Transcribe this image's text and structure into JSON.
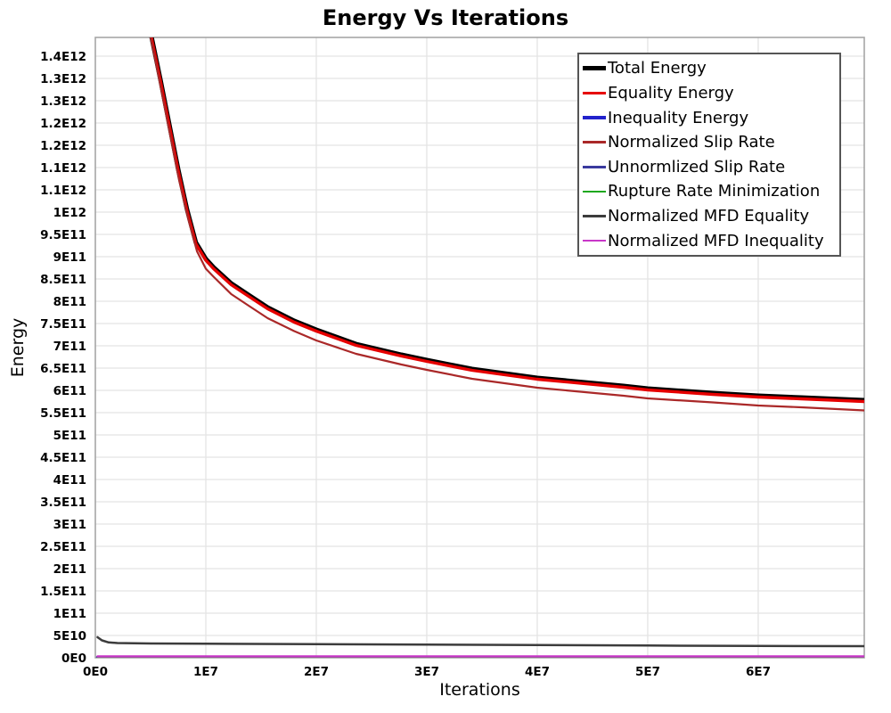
{
  "chart_data": {
    "type": "line",
    "title": "Energy Vs Iterations",
    "xlabel": "Iterations",
    "ylabel": "Energy",
    "xlim": [
      0,
      69600000.0
    ],
    "ylim": [
      0,
      1392000000000.0
    ],
    "grid": true,
    "legend_position": "top-right-inside",
    "x_ticks": [
      {
        "value": 0,
        "label": "0E0"
      },
      {
        "value": 10000000.0,
        "label": "1E7"
      },
      {
        "value": 20000000.0,
        "label": "2E7"
      },
      {
        "value": 30000000.0,
        "label": "3E7"
      },
      {
        "value": 40000000.0,
        "label": "4E7"
      },
      {
        "value": 50000000.0,
        "label": "5E7"
      },
      {
        "value": 60000000.0,
        "label": "6E7"
      }
    ],
    "y_ticks": [
      {
        "value": 0,
        "label": "0E0"
      },
      {
        "value": 50000000000.0,
        "label": "5E10"
      },
      {
        "value": 100000000000.0,
        "label": "1E11"
      },
      {
        "value": 150000000000.0,
        "label": "1.5E11"
      },
      {
        "value": 200000000000.0,
        "label": "2E11"
      },
      {
        "value": 250000000000.0,
        "label": "2.5E11"
      },
      {
        "value": 300000000000.0,
        "label": "3E11"
      },
      {
        "value": 350000000000.0,
        "label": "3.5E11"
      },
      {
        "value": 400000000000.0,
        "label": "4E11"
      },
      {
        "value": 450000000000.0,
        "label": "4.5E11"
      },
      {
        "value": 500000000000.0,
        "label": "5E11"
      },
      {
        "value": 550000000000.0,
        "label": "5.5E11"
      },
      {
        "value": 600000000000.0,
        "label": "6E11"
      },
      {
        "value": 650000000000.0,
        "label": "6.5E11"
      },
      {
        "value": 700000000000.0,
        "label": "7E11"
      },
      {
        "value": 750000000000.0,
        "label": "7.5E11"
      },
      {
        "value": 800000000000.0,
        "label": "8E11"
      },
      {
        "value": 850000000000.0,
        "label": "8.5E11"
      },
      {
        "value": 900000000000.0,
        "label": "9E11"
      },
      {
        "value": 950000000000.0,
        "label": "9.5E11"
      },
      {
        "value": 1000000000000.0,
        "label": "1E12"
      },
      {
        "value": 1050000000000.0,
        "label": "1.1E12"
      },
      {
        "value": 1100000000000.0,
        "label": "1.1E12"
      },
      {
        "value": 1150000000000.0,
        "label": "1.2E12"
      },
      {
        "value": 1200000000000.0,
        "label": "1.2E12"
      },
      {
        "value": 1250000000000.0,
        "label": "1.3E12"
      },
      {
        "value": 1300000000000.0,
        "label": "1.3E12"
      },
      {
        "value": 1350000000000.0,
        "label": "1.4E12"
      }
    ],
    "series": [
      {
        "name": "Total Energy",
        "color": "#000000",
        "width": 5,
        "points": [
          [
            3500000.0,
            1620000000000.0
          ],
          [
            4500000.0,
            1480000000000.0
          ],
          [
            5100000.0,
            1392000000000.0
          ],
          [
            5900000.0,
            1296000000000.0
          ],
          [
            6700000.0,
            1196000000000.0
          ],
          [
            7500000.0,
            1096000000000.0
          ],
          [
            8300000.0,
            1006000000000.0
          ],
          [
            9100000.0,
            932000000000.0
          ],
          [
            10000000.0,
            895000000000.0
          ],
          [
            10700000.0,
            876000000000.0
          ],
          [
            12300000.0,
            840000000000.0
          ],
          [
            14000000.0,
            812000000000.0
          ],
          [
            15600000.0,
            786000000000.0
          ],
          [
            18000000.0,
            756000000000.0
          ],
          [
            20000000.0,
            736000000000.0
          ],
          [
            23600000.0,
            704000000000.0
          ],
          [
            27700000.0,
            680000000000.0
          ],
          [
            30000000.0,
            668000000000.0
          ],
          [
            34100000.0,
            648000000000.0
          ],
          [
            40000000.0,
            628000000000.0
          ],
          [
            47800000.0,
            610000000000.0
          ],
          [
            50000000.0,
            604000000000.0
          ],
          [
            55900000.0,
            594000000000.0
          ],
          [
            60000000.0,
            588000000000.0
          ],
          [
            63900000.0,
            584000000000.0
          ],
          [
            69600000.0,
            578000000000.0
          ]
        ]
      },
      {
        "name": "Equality Energy",
        "color": "#e60000",
        "width": 3.4,
        "points": [
          [
            3500000.0,
            1617000000000.0
          ],
          [
            4500000.0,
            1477000000000.0
          ],
          [
            5100000.0,
            1389000000000.0
          ],
          [
            5900000.0,
            1293000000000.0
          ],
          [
            6700000.0,
            1193000000000.0
          ],
          [
            7500000.0,
            1093000000000.0
          ],
          [
            8300000.0,
            1003000000000.0
          ],
          [
            9100000.0,
            929000000000.0
          ],
          [
            10000000.0,
            892000000000.0
          ],
          [
            10700000.0,
            873000000000.0
          ],
          [
            12300000.0,
            837000000000.0
          ],
          [
            14000000.0,
            809000000000.0
          ],
          [
            15600000.0,
            783000000000.0
          ],
          [
            18000000.0,
            753000000000.0
          ],
          [
            20000000.0,
            733000000000.0
          ],
          [
            23600000.0,
            701000000000.0
          ],
          [
            27700000.0,
            677000000000.0
          ],
          [
            30000000.0,
            665000000000.0
          ],
          [
            34100000.0,
            645000000000.0
          ],
          [
            40000000.0,
            625000000000.0
          ],
          [
            47800000.0,
            607000000000.0
          ],
          [
            50000000.0,
            601000000000.0
          ],
          [
            55900000.0,
            591000000000.0
          ],
          [
            60000000.0,
            585000000000.0
          ],
          [
            63900000.0,
            581000000000.0
          ],
          [
            69600000.0,
            575000000000.0
          ]
        ]
      },
      {
        "name": "Inequality Energy",
        "color": "#2222cc",
        "width": 3.4,
        "points": [
          [
            200000.0,
            1200000000.0
          ],
          [
            69600000.0,
            1200000000.0
          ]
        ]
      },
      {
        "name": "Normalized Slip Rate",
        "color": "#aa2828",
        "width": 2.2,
        "points": [
          [
            3500000.0,
            1590000000000.0
          ],
          [
            4500000.0,
            1450000000000.0
          ],
          [
            5200000.0,
            1370000000000.0
          ],
          [
            6000000.0,
            1270000000000.0
          ],
          [
            6800000.0,
            1170000000000.0
          ],
          [
            7600000.0,
            1070000000000.0
          ],
          [
            8400000.0,
            985000000000.0
          ],
          [
            9200000.0,
            912000000000.0
          ],
          [
            10000000.0,
            873000000000.0
          ],
          [
            10700000.0,
            855000000000.0
          ],
          [
            12300000.0,
            816000000000.0
          ],
          [
            14000000.0,
            788000000000.0
          ],
          [
            15600000.0,
            762000000000.0
          ],
          [
            18000000.0,
            733000000000.0
          ],
          [
            20000000.0,
            712000000000.0
          ],
          [
            23600000.0,
            682000000000.0
          ],
          [
            27700000.0,
            658000000000.0
          ],
          [
            30000000.0,
            646000000000.0
          ],
          [
            34100000.0,
            626000000000.0
          ],
          [
            40000000.0,
            606000000000.0
          ],
          [
            47800000.0,
            588000000000.0
          ],
          [
            50000000.0,
            582000000000.0
          ],
          [
            55900000.0,
            573000000000.0
          ],
          [
            60000000.0,
            566000000000.0
          ],
          [
            63900000.0,
            562000000000.0
          ],
          [
            69600000.0,
            555000000000.0
          ]
        ]
      },
      {
        "name": "Unnormlized Slip Rate",
        "color": "#3a3a9e",
        "width": 2.2,
        "points": [
          [
            200000.0,
            900000000.0
          ],
          [
            69600000.0,
            900000000.0
          ]
        ]
      },
      {
        "name": "Rupture Rate Minimization",
        "color": "#1ea81e",
        "width": 2.2,
        "points": [
          [
            200000.0,
            700000000.0
          ],
          [
            69600000.0,
            700000000.0
          ]
        ]
      },
      {
        "name": "Normalized MFD Equality",
        "color": "#3c3c3c",
        "width": 2.5,
        "points": [
          [
            200000.0,
            46000000000.0
          ],
          [
            600000.0,
            39000000000.0
          ],
          [
            1200000.0,
            34500000000.0
          ],
          [
            2000000.0,
            33000000000.0
          ],
          [
            5000000.0,
            32000000000.0
          ],
          [
            10000000.0,
            31500000000.0
          ],
          [
            20000000.0,
            30500000000.0
          ],
          [
            30000000.0,
            29500000000.0
          ],
          [
            40000000.0,
            28500000000.0
          ],
          [
            50000000.0,
            27500000000.0
          ],
          [
            60000000.0,
            26500000000.0
          ],
          [
            69600000.0,
            26000000000.0
          ]
        ]
      },
      {
        "name": "Normalized MFD Inequality",
        "color": "#c837c8",
        "width": 2.5,
        "points": [
          [
            200000.0,
            3000000000.0
          ],
          [
            69600000.0,
            3000000000.0
          ]
        ]
      }
    ],
    "style": {
      "frame_color": "#a6a6a6",
      "grid_color": "#e4e4e4",
      "background": "#ffffff",
      "tick_label_color": "#000000"
    }
  }
}
